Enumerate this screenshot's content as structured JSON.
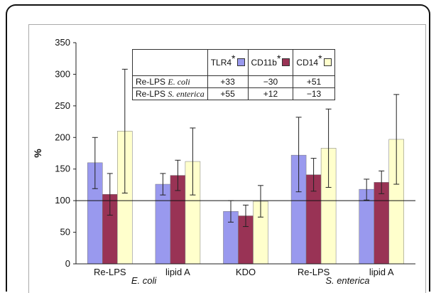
{
  "chart_data": {
    "type": "bar",
    "ylabel": "%",
    "ylim": [
      0,
      350
    ],
    "yticks": [
      "0",
      "50",
      "100",
      "150",
      "200",
      "250",
      "300",
      "350"
    ],
    "reference_line": 100,
    "categories": [
      "Re-LPS",
      "lipid A",
      "KDO",
      "Re-LPS",
      "lipid A"
    ],
    "group_labels": [
      {
        "text": "E. coli",
        "under": [
          0,
          1
        ]
      },
      {
        "text": "S. enterica",
        "under": [
          3,
          4
        ]
      }
    ],
    "series": [
      {
        "name": "TLR4",
        "color": "#9999ee",
        "values": [
          160,
          126,
          83,
          172,
          118
        ],
        "err_high": [
          200,
          143,
          100,
          232,
          134
        ],
        "err_low": [
          119,
          109,
          66,
          114,
          101
        ]
      },
      {
        "name": "CD11b",
        "color": "#993355",
        "values": [
          110,
          140,
          76,
          141,
          129
        ],
        "err_high": [
          143,
          164,
          93,
          167,
          147
        ],
        "err_low": [
          77,
          116,
          59,
          115,
          111
        ]
      },
      {
        "name": "CD14",
        "color": "#ffffcc",
        "values": [
          210,
          162,
          99,
          183,
          197
        ],
        "err_high": [
          308,
          215,
          124,
          245,
          268
        ],
        "err_low": [
          112,
          109,
          74,
          121,
          126
        ]
      }
    ],
    "inset_table": {
      "columns": [
        {
          "label": "TLR4",
          "mark": "*",
          "color": "#9999ee"
        },
        {
          "label": "CD11b",
          "mark": "*",
          "color": "#993355"
        },
        {
          "label": "CD14",
          "mark": "*",
          "color": "#ffffcc"
        }
      ],
      "rows": [
        {
          "prefix": "Re-LPS",
          "species": "E. coli",
          "values": [
            "+33",
            "−30",
            "+51"
          ]
        },
        {
          "prefix": "Re-LPS",
          "species": "S. enterica",
          "values": [
            "+55",
            "+12",
            "−13"
          ]
        }
      ]
    }
  }
}
